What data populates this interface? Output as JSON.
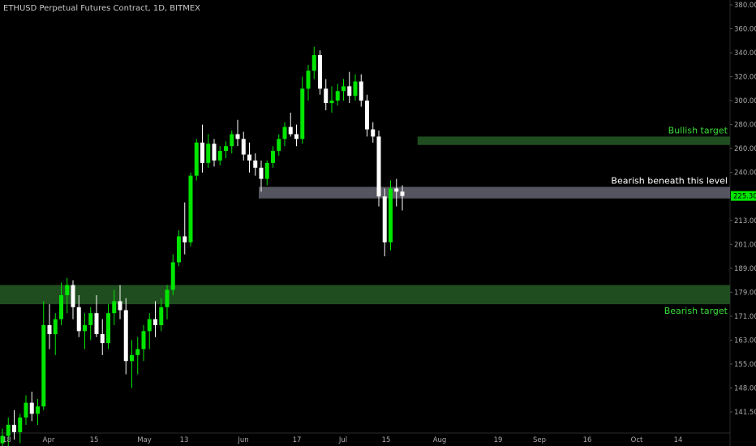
{
  "chart_data": {
    "type": "candlestick",
    "title": "ETHUSD Perpetual Futures Contract, 1D, BITMEX",
    "y_ticks": [
      141.5,
      148.0,
      155.0,
      163.0,
      171.0,
      179.0,
      189.0,
      201.0,
      213.0,
      225.0,
      240.0,
      260.0,
      280.0,
      300.0,
      320.0,
      340.0,
      360.0,
      380.0
    ],
    "y_tick_labels": [
      "141.50",
      "148.00",
      "155.00",
      "163.00",
      "171.00",
      "179.00",
      "189.00",
      "201.00",
      "213.00",
      "",
      "240.00",
      "260.00",
      "280.00",
      "300.00",
      "320.00",
      "340.00",
      "360.00",
      "380.00"
    ],
    "x_tick_labels": [
      "18",
      "Apr",
      "15",
      "May",
      "13",
      "Jun",
      "17",
      "Jul",
      "15",
      "Aug",
      "19",
      "Sep",
      "16",
      "Oct",
      "14"
    ],
    "x_tick_positions": [
      3,
      60,
      116,
      178,
      227,
      300,
      366,
      423,
      476,
      542,
      614,
      665,
      724,
      785,
      836
    ],
    "last_price": {
      "label": "225.30",
      "value": 225.3,
      "color": "#00e600"
    },
    "zones": [
      {
        "name": "bullish-target-zone",
        "label": "Bullish target",
        "low": 263,
        "high": 270,
        "from_index": 71,
        "color": "#1f4d1f",
        "label_color": "#3adf3a",
        "label_pos": "above"
      },
      {
        "name": "bearish-level-zone",
        "label": "Bearish beneath this level",
        "low": 224,
        "high": 231,
        "from_index": 44,
        "color": "#55555f",
        "label_color": "#ffffff",
        "label_pos": "above"
      },
      {
        "name": "bearish-target-zone",
        "label": "Bearish target",
        "low": 175,
        "high": 182,
        "from_index": 0,
        "color": "#1f4d1f",
        "label_color": "#3adf3a",
        "label_pos": "below"
      }
    ],
    "colors": {
      "up": "#00e600",
      "down": "#ffffff",
      "background": "#000000",
      "axis_text": "#aaaaaa"
    },
    "candles": [
      [
        133,
        137,
        130,
        135
      ],
      [
        135,
        140,
        132,
        138
      ],
      [
        138,
        142,
        134,
        136
      ],
      [
        136,
        141,
        133,
        140
      ],
      [
        140,
        146,
        138,
        144
      ],
      [
        144,
        147,
        139,
        141
      ],
      [
        141,
        145,
        138,
        143
      ],
      [
        143,
        176,
        142,
        168
      ],
      [
        168,
        175,
        160,
        165
      ],
      [
        165,
        172,
        158,
        170
      ],
      [
        170,
        183,
        168,
        178
      ],
      [
        178,
        185,
        172,
        182
      ],
      [
        182,
        184,
        170,
        174
      ],
      [
        174,
        178,
        164,
        166
      ],
      [
        166,
        172,
        160,
        168
      ],
      [
        168,
        174,
        163,
        172
      ],
      [
        172,
        178,
        164,
        165
      ],
      [
        165,
        170,
        158,
        162
      ],
      [
        162,
        175,
        160,
        172
      ],
      [
        172,
        180,
        168,
        176
      ],
      [
        176,
        182,
        170,
        173
      ],
      [
        173,
        177,
        152,
        156
      ],
      [
        156,
        163,
        148,
        158
      ],
      [
        158,
        164,
        152,
        160
      ],
      [
        160,
        168,
        156,
        166
      ],
      [
        166,
        172,
        160,
        170
      ],
      [
        170,
        176,
        164,
        168
      ],
      [
        168,
        177,
        166,
        174
      ],
      [
        174,
        182,
        170,
        180
      ],
      [
        180,
        196,
        178,
        192
      ],
      [
        192,
        208,
        190,
        205
      ],
      [
        205,
        222,
        196,
        202
      ],
      [
        202,
        240,
        200,
        238
      ],
      [
        238,
        268,
        235,
        265
      ],
      [
        265,
        280,
        240,
        248
      ],
      [
        248,
        272,
        244,
        264
      ],
      [
        264,
        268,
        245,
        250
      ],
      [
        250,
        262,
        246,
        258
      ],
      [
        258,
        266,
        252,
        262
      ],
      [
        262,
        275,
        256,
        272
      ],
      [
        272,
        284,
        262,
        268
      ],
      [
        268,
        274,
        250,
        255
      ],
      [
        255,
        265,
        240,
        250
      ],
      [
        250,
        256,
        238,
        244
      ],
      [
        244,
        250,
        228,
        236
      ],
      [
        236,
        250,
        232,
        248
      ],
      [
        248,
        262,
        244,
        258
      ],
      [
        258,
        272,
        254,
        268
      ],
      [
        268,
        282,
        262,
        278
      ],
      [
        278,
        290,
        270,
        272
      ],
      [
        272,
        280,
        262,
        268
      ],
      [
        268,
        320,
        264,
        310
      ],
      [
        310,
        330,
        300,
        325
      ],
      [
        325,
        345,
        318,
        338
      ],
      [
        338,
        342,
        305,
        310
      ],
      [
        310,
        318,
        292,
        298
      ],
      [
        298,
        312,
        290,
        300
      ],
      [
        300,
        314,
        296,
        308
      ],
      [
        308,
        318,
        300,
        312
      ],
      [
        312,
        324,
        298,
        304
      ],
      [
        304,
        322,
        300,
        316
      ],
      [
        316,
        322,
        295,
        300
      ],
      [
        300,
        305,
        270,
        276
      ],
      [
        276,
        282,
        265,
        270
      ],
      [
        270,
        275,
        220,
        225
      ],
      [
        225,
        230,
        195,
        202
      ],
      [
        202,
        235,
        198,
        230
      ],
      [
        230,
        236,
        220,
        228
      ],
      [
        228,
        232,
        218,
        225.3
      ]
    ]
  }
}
